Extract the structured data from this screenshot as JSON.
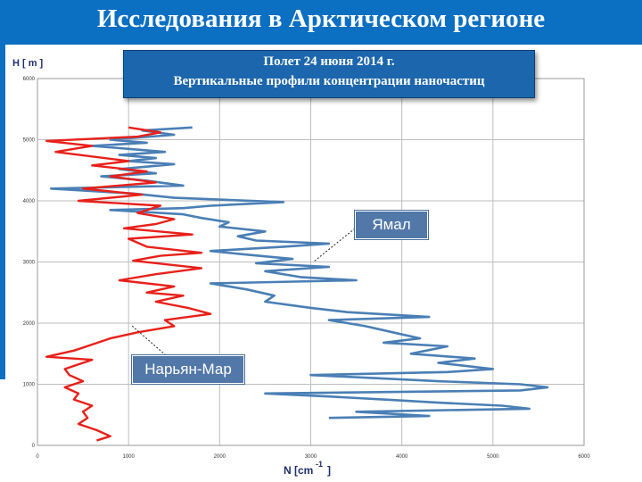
{
  "page": {
    "title": "Исследования в Арктическом регионе",
    "subtitle_line1": "Полет 24 июня 2014 г.",
    "subtitle_line2": "Вертикальные профили концентрации наночастиц"
  },
  "colors": {
    "title_bar": "#0b6fc2",
    "yamal": "#4a7fb5",
    "naryan_mar": "#e8201a",
    "callout": "#5178a8"
  },
  "chart_data": {
    "type": "line",
    "ylabel": "H [ m ]",
    "xlabel": "N [cm",
    "xlabel_sup": "-1",
    "xlabel_end": "]",
    "xlim": [
      0,
      6000
    ],
    "ylim": [
      0,
      6000
    ],
    "xticks": [
      "0",
      "1000",
      "2000",
      "3000",
      "4000",
      "5000",
      "6000"
    ],
    "yticks": [
      "0",
      "1000",
      "2000",
      "3000",
      "4000",
      "5000",
      "6000"
    ],
    "grid": true,
    "series": [
      {
        "name": "Ямал",
        "color": "#4a7fb5",
        "points": [
          [
            1700,
            5200
          ],
          [
            1150,
            5150
          ],
          [
            1500,
            5080
          ],
          [
            800,
            5000
          ],
          [
            1200,
            4950
          ],
          [
            600,
            4900
          ],
          [
            1000,
            4850
          ],
          [
            1400,
            4800
          ],
          [
            900,
            4750
          ],
          [
            1300,
            4700
          ],
          [
            1000,
            4650
          ],
          [
            1500,
            4600
          ],
          [
            900,
            4520
          ],
          [
            1300,
            4450
          ],
          [
            700,
            4400
          ],
          [
            1200,
            4330
          ],
          [
            1600,
            4250
          ],
          [
            150,
            4200
          ],
          [
            1050,
            4120
          ],
          [
            1500,
            4050
          ],
          [
            2700,
            3980
          ],
          [
            1900,
            3920
          ],
          [
            1600,
            3880
          ],
          [
            800,
            3850
          ],
          [
            1600,
            3780
          ],
          [
            1800,
            3720
          ],
          [
            2100,
            3650
          ],
          [
            2000,
            3580
          ],
          [
            2500,
            3500
          ],
          [
            2200,
            3420
          ],
          [
            2400,
            3350
          ],
          [
            3200,
            3300
          ],
          [
            2700,
            3250
          ],
          [
            1900,
            3180
          ],
          [
            2300,
            3120
          ],
          [
            2800,
            3050
          ],
          [
            2400,
            2980
          ],
          [
            3200,
            2920
          ],
          [
            2500,
            2850
          ],
          [
            2900,
            2750
          ],
          [
            3500,
            2700
          ],
          [
            1900,
            2650
          ],
          [
            2300,
            2550
          ],
          [
            2600,
            2450
          ],
          [
            2500,
            2350
          ],
          [
            3000,
            2250
          ],
          [
            3400,
            2180
          ],
          [
            4300,
            2100
          ],
          [
            3200,
            2050
          ],
          [
            3600,
            1950
          ],
          [
            3900,
            1850
          ],
          [
            4200,
            1750
          ],
          [
            3800,
            1680
          ],
          [
            4500,
            1620
          ],
          [
            4100,
            1500
          ],
          [
            4800,
            1420
          ],
          [
            4400,
            1350
          ],
          [
            5000,
            1250
          ],
          [
            4500,
            1200
          ],
          [
            3000,
            1150
          ],
          [
            3700,
            1100
          ],
          [
            4400,
            1050
          ],
          [
            5300,
            1000
          ],
          [
            5600,
            950
          ],
          [
            5300,
            900
          ],
          [
            2500,
            850
          ],
          [
            3200,
            800
          ],
          [
            3800,
            750
          ],
          [
            4400,
            700
          ],
          [
            5100,
            650
          ],
          [
            5400,
            600
          ],
          [
            3500,
            550
          ],
          [
            4300,
            480
          ],
          [
            3200,
            450
          ]
        ]
      },
      {
        "name": "Нарьян-Мар",
        "color": "#e8201a",
        "points": [
          [
            1000,
            5200
          ],
          [
            1350,
            5120
          ],
          [
            1100,
            5050
          ],
          [
            100,
            4980
          ],
          [
            600,
            4900
          ],
          [
            200,
            4800
          ],
          [
            1000,
            4650
          ],
          [
            600,
            4580
          ],
          [
            1200,
            4480
          ],
          [
            800,
            4400
          ],
          [
            1300,
            4300
          ],
          [
            500,
            4200
          ],
          [
            1150,
            4100
          ],
          [
            450,
            4000
          ],
          [
            1350,
            3920
          ],
          [
            1100,
            3800
          ],
          [
            1500,
            3700
          ],
          [
            1300,
            3620
          ],
          [
            950,
            3550
          ],
          [
            1700,
            3450
          ],
          [
            1000,
            3380
          ],
          [
            1200,
            3250
          ],
          [
            1800,
            3150
          ],
          [
            1350,
            3100
          ],
          [
            1050,
            3020
          ],
          [
            1800,
            2900
          ],
          [
            1300,
            2800
          ],
          [
            900,
            2700
          ],
          [
            1500,
            2600
          ],
          [
            1200,
            2500
          ],
          [
            1600,
            2450
          ],
          [
            1300,
            2350
          ],
          [
            1650,
            2250
          ],
          [
            1900,
            2150
          ],
          [
            1400,
            2050
          ],
          [
            1500,
            1950
          ],
          [
            1100,
            1850
          ],
          [
            800,
            1750
          ],
          [
            600,
            1650
          ],
          [
            400,
            1550
          ],
          [
            100,
            1450
          ],
          [
            600,
            1400
          ],
          [
            500,
            1350
          ],
          [
            300,
            1250
          ],
          [
            350,
            1150
          ],
          [
            500,
            1050
          ],
          [
            300,
            950
          ],
          [
            450,
            850
          ],
          [
            400,
            750
          ],
          [
            600,
            650
          ],
          [
            500,
            550
          ],
          [
            550,
            450
          ],
          [
            450,
            350
          ],
          [
            650,
            250
          ],
          [
            800,
            150
          ],
          [
            650,
            80
          ]
        ]
      }
    ]
  },
  "callouts": {
    "yamal": "Ямал",
    "naryan_mar": "Нарьян-Мар"
  }
}
